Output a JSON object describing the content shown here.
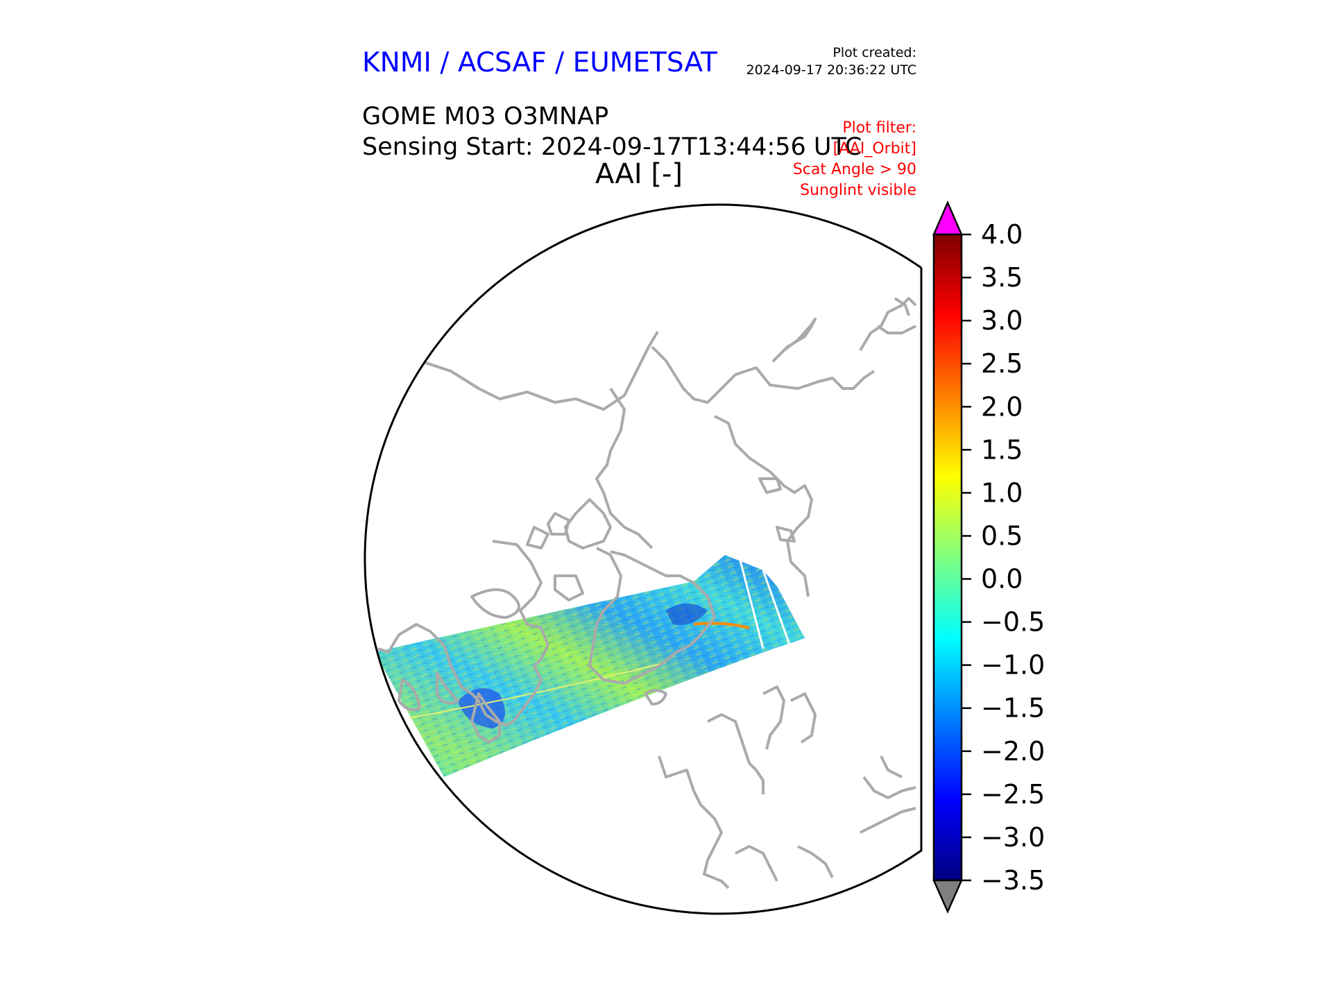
{
  "header": {
    "organization": "KNMI / ACSAF / EUMETSAT",
    "plot_created_label": "Plot created:",
    "plot_created_time": "2024-09-17 20:36:22 UTC",
    "product_title": "GOME M03 O3MNAP",
    "sensing_start": "Sensing Start: 2024-09-17T13:44:56 UTC",
    "parameter_label": "AAI [-]"
  },
  "plot_filter": {
    "title": "Plot filter:",
    "lines": [
      "[AAI_Orbit]",
      "Scat Angle > 90",
      "Sunglint visible"
    ]
  },
  "map": {
    "projection": "north polar stereographic",
    "coastline_color": "#aaaaaa",
    "boundary_color": "#000000"
  },
  "colorbar": {
    "min": -3.5,
    "max": 4.0,
    "ticks": [
      "4.0",
      "3.5",
      "3.0",
      "2.5",
      "2.0",
      "1.5",
      "1.0",
      "0.5",
      "0.0",
      "−0.5",
      "−1.0",
      "−1.5",
      "−2.0",
      "−2.5",
      "−3.0",
      "−3.5"
    ],
    "over_color": "#ff00ff",
    "under_color": "#808080",
    "colormap": [
      "#00007f",
      "#0000ff",
      "#007fff",
      "#00ffff",
      "#7fff7f",
      "#ffff00",
      "#ff7f00",
      "#ff0000",
      "#7f0000"
    ]
  }
}
